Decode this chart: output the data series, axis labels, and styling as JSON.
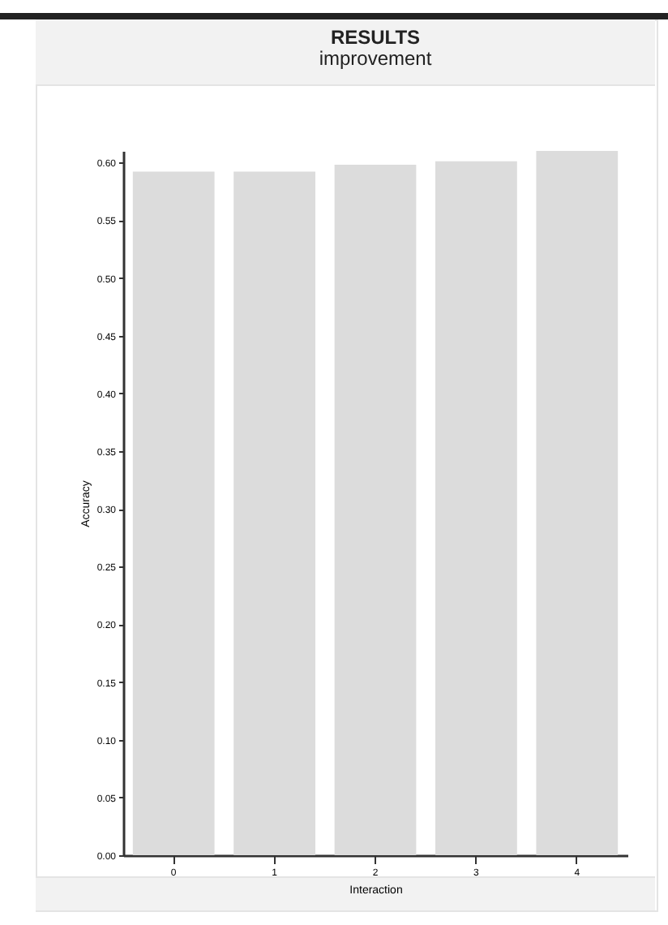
{
  "chart_data": {
    "type": "bar",
    "title": "RESULTS",
    "subtitle": "improvement",
    "xlabel": "Interaction",
    "ylabel": "Accuracy",
    "categories": [
      "0",
      "1",
      "2",
      "3",
      "4"
    ],
    "values": [
      0.592,
      0.592,
      0.598,
      0.601,
      0.61
    ],
    "color": "#dcdcdc",
    "ylim": [
      0,
      0.61
    ],
    "yticks": [
      {
        "value": 0,
        "label": "0.00"
      },
      0.05,
      {
        "value": 0.1,
        "label": "0.10"
      },
      0.15,
      {
        "value": 0.2,
        "label": "0.20"
      },
      0.25,
      {
        "value": 0.3,
        "label": "0.30"
      },
      0.35,
      {
        "value": 0.4,
        "label": "0.40"
      },
      0.45,
      {
        "value": 0.5,
        "label": "0.50"
      },
      0.55,
      {
        "value": 0.6,
        "label": "0.60"
      }
    ],
    "grid": false
  }
}
